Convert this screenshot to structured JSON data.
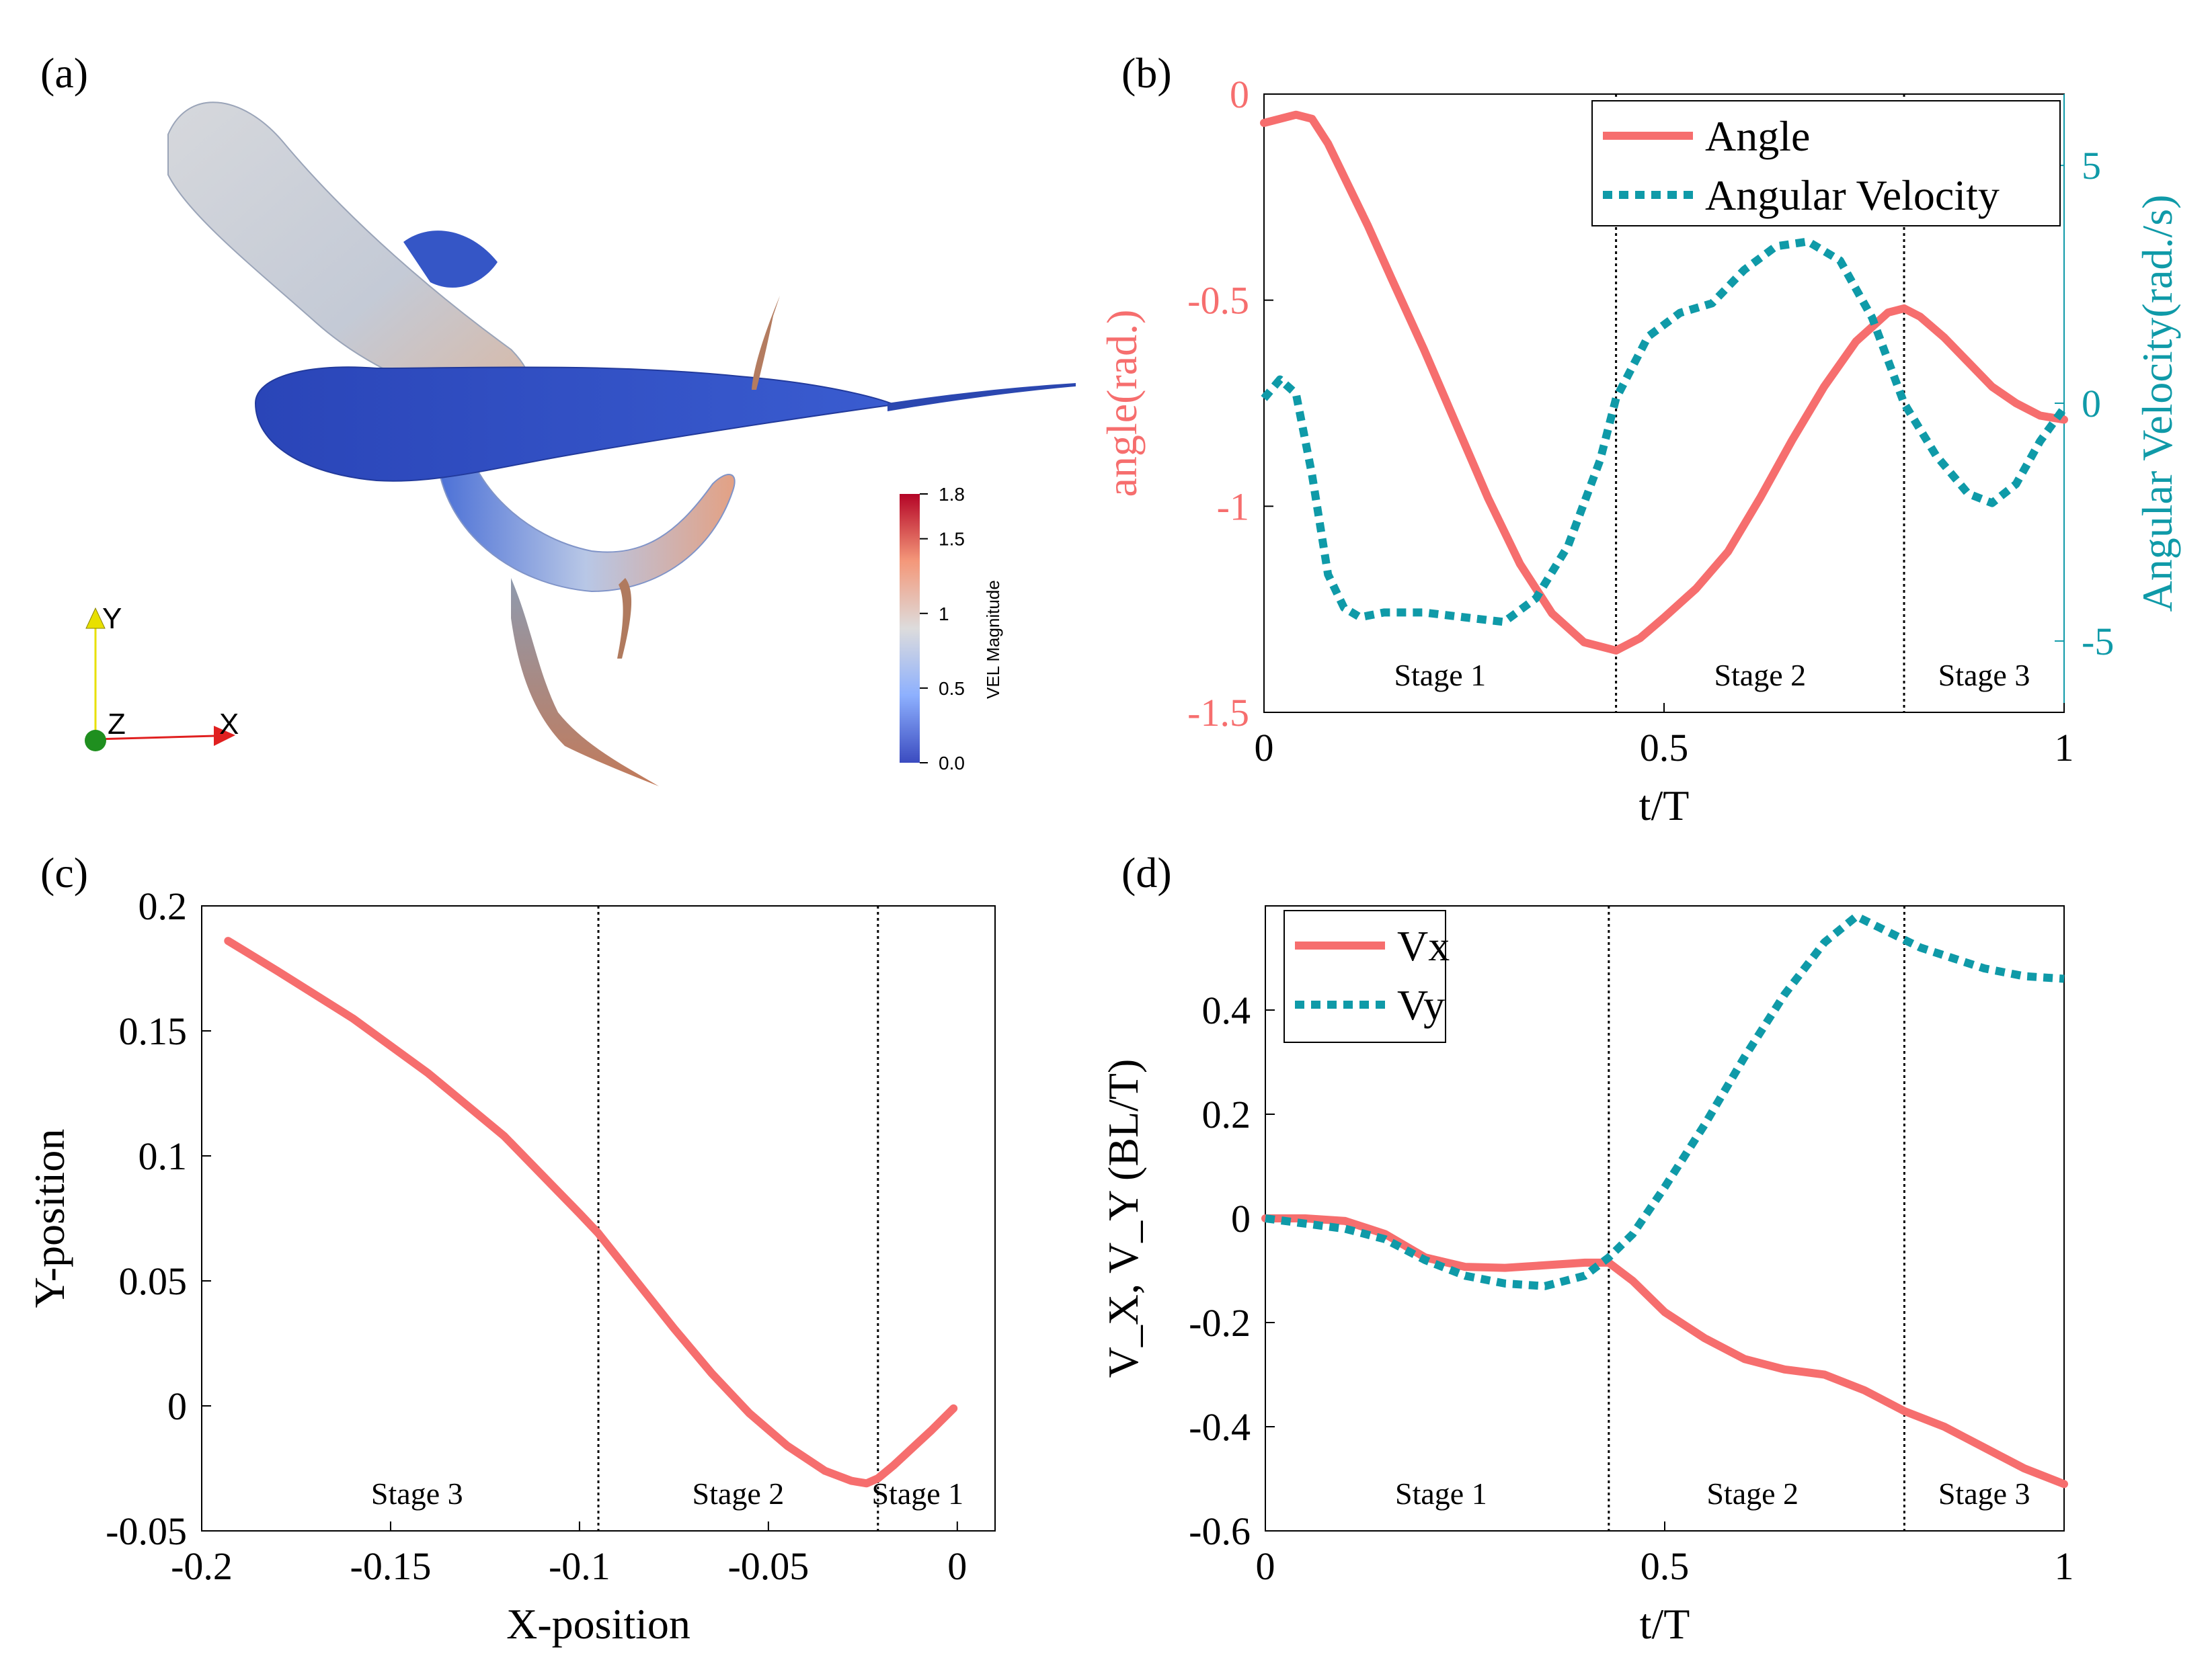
{
  "panels": {
    "a": {
      "label": "(a)"
    },
    "b": {
      "label": "(b)"
    },
    "c": {
      "label": "(c)"
    },
    "d": {
      "label": "(d)"
    }
  },
  "colors": {
    "red": "#f66e6e",
    "teal": "#0f9aa8",
    "fish_blue": "#2f4fbf",
    "axis": "#000000"
  },
  "render3d": {
    "axes_triad": {
      "x": "X",
      "y": "Y",
      "z": "Z"
    },
    "colorbar": {
      "title": "VEL Magnitude",
      "ticks": [
        "1.8",
        "1.5",
        "1",
        "0.5",
        "0.0"
      ],
      "tick_values": [
        1.8,
        1.5,
        1.0,
        0.5,
        0.0
      ],
      "range": [
        0.0,
        1.8
      ]
    }
  },
  "chart_data": [
    {
      "id": "b",
      "type": "line",
      "title": "",
      "xlabel": "t/T",
      "ylabel": "angle(rad.)",
      "y2label": "Angular Velocity(rad./s)",
      "xlim": [
        0,
        1
      ],
      "ylim": [
        -1.5,
        0
      ],
      "y2lim": [
        -6.5,
        6.5
      ],
      "xticks": [
        0,
        0.5,
        1
      ],
      "xtick_labels": [
        "0",
        "0.5",
        "1"
      ],
      "yticks": [
        0,
        -0.5,
        -1,
        -1.5
      ],
      "ytick_labels": [
        "0",
        "-0.5",
        "-1",
        "-1.5"
      ],
      "y2ticks": [
        5,
        0,
        -5
      ],
      "y2tick_labels": [
        "5",
        "0",
        "-5"
      ],
      "legend_position": "top-right",
      "stage_lines": [
        0.44,
        0.8
      ],
      "stage_labels": [
        {
          "text": "Stage 1",
          "x": 0.22
        },
        {
          "text": "Stage 2",
          "x": 0.62
        },
        {
          "text": "Stage 3",
          "x": 0.9
        }
      ],
      "series": [
        {
          "name": "Angle",
          "axis": "left",
          "style": "solid",
          "color": "#f66e6e",
          "x": [
            0,
            0.02,
            0.04,
            0.06,
            0.08,
            0.1,
            0.13,
            0.16,
            0.2,
            0.24,
            0.28,
            0.32,
            0.36,
            0.4,
            0.44,
            0.47,
            0.5,
            0.54,
            0.58,
            0.62,
            0.66,
            0.7,
            0.74,
            0.78,
            0.8,
            0.82,
            0.85,
            0.88,
            0.91,
            0.94,
            0.97,
            1.0
          ],
          "values": [
            -0.07,
            -0.06,
            -0.05,
            -0.06,
            -0.12,
            -0.2,
            -0.32,
            -0.45,
            -0.62,
            -0.8,
            -0.98,
            -1.14,
            -1.26,
            -1.33,
            -1.35,
            -1.32,
            -1.27,
            -1.2,
            -1.11,
            -0.98,
            -0.84,
            -0.71,
            -0.6,
            -0.53,
            -0.52,
            -0.54,
            -0.59,
            -0.65,
            -0.71,
            -0.75,
            -0.78,
            -0.79
          ]
        },
        {
          "name": "Angular Velocity",
          "axis": "right",
          "style": "dashed",
          "color": "#0f9aa8",
          "x": [
            0,
            0.02,
            0.04,
            0.06,
            0.08,
            0.1,
            0.12,
            0.15,
            0.2,
            0.25,
            0.3,
            0.34,
            0.38,
            0.42,
            0.44,
            0.48,
            0.52,
            0.56,
            0.6,
            0.64,
            0.68,
            0.72,
            0.76,
            0.8,
            0.84,
            0.88,
            0.91,
            0.94,
            0.97,
            1.0
          ],
          "values": [
            0.1,
            0.5,
            0.2,
            -1.5,
            -3.6,
            -4.3,
            -4.5,
            -4.4,
            -4.4,
            -4.5,
            -4.6,
            -4.1,
            -3.0,
            -1.2,
            0.1,
            1.4,
            1.9,
            2.1,
            2.8,
            3.3,
            3.4,
            3.0,
            1.8,
            0.0,
            -1.1,
            -1.9,
            -2.1,
            -1.7,
            -0.8,
            -0.1
          ]
        }
      ]
    },
    {
      "id": "c",
      "type": "line",
      "title": "",
      "xlabel": "X-position",
      "ylabel": "Y-position",
      "xlim": [
        -0.2,
        0.01
      ],
      "ylim": [
        -0.05,
        0.2
      ],
      "xticks": [
        -0.2,
        -0.15,
        -0.1,
        -0.05,
        0
      ],
      "xtick_labels": [
        "-0.2",
        "-0.15",
        "-0.1",
        "-0.05",
        "0"
      ],
      "yticks": [
        0.2,
        0.15,
        0.1,
        0.05,
        0,
        -0.05
      ],
      "ytick_labels": [
        "0.2",
        "0.15",
        "0.1",
        "0.05",
        "0",
        "-0.05"
      ],
      "stage_lines": [
        -0.095,
        -0.021
      ],
      "stage_labels": [
        {
          "text": "Stage 3",
          "x": -0.143
        },
        {
          "text": "Stage 2",
          "x": -0.058
        },
        {
          "text": "Stage 1",
          "x": -0.0105
        }
      ],
      "series": [
        {
          "name": "Trajectory",
          "style": "solid",
          "color": "#f66e6e",
          "x": [
            -0.193,
            -0.18,
            -0.16,
            -0.14,
            -0.12,
            -0.1,
            -0.095,
            -0.085,
            -0.075,
            -0.065,
            -0.055,
            -0.045,
            -0.035,
            -0.028,
            -0.024,
            -0.021,
            -0.017,
            -0.012,
            -0.007,
            -0.003,
            -0.001
          ],
          "values": [
            0.186,
            0.174,
            0.155,
            0.133,
            0.108,
            0.077,
            0.069,
            0.05,
            0.031,
            0.013,
            -0.003,
            -0.016,
            -0.026,
            -0.03,
            -0.031,
            -0.029,
            -0.024,
            -0.017,
            -0.01,
            -0.004,
            -0.001
          ]
        }
      ]
    },
    {
      "id": "d",
      "type": "line",
      "title": "",
      "xlabel": "t/T",
      "ylabel": "V_X, V_Y (BL/T)",
      "xlim": [
        0,
        1
      ],
      "ylim": [
        -0.6,
        0.6
      ],
      "xticks": [
        0,
        0.5,
        1
      ],
      "xtick_labels": [
        "0",
        "0.5",
        "1"
      ],
      "yticks": [
        0.4,
        0.2,
        0,
        -0.2,
        -0.4,
        -0.6
      ],
      "ytick_labels": [
        "0.4",
        "0.2",
        "0",
        "-0.2",
        "-0.4",
        "-0.6"
      ],
      "legend_position": "top-left",
      "stage_lines": [
        0.43,
        0.8
      ],
      "stage_labels": [
        {
          "text": "Stage 1",
          "x": 0.22
        },
        {
          "text": "Stage 2",
          "x": 0.61
        },
        {
          "text": "Stage 3",
          "x": 0.9
        }
      ],
      "series": [
        {
          "name": "Vx",
          "style": "solid",
          "color": "#f66e6e",
          "x": [
            0,
            0.05,
            0.1,
            0.15,
            0.2,
            0.25,
            0.3,
            0.35,
            0.4,
            0.43,
            0.46,
            0.5,
            0.55,
            0.6,
            0.65,
            0.7,
            0.75,
            0.8,
            0.85,
            0.9,
            0.95,
            1.0
          ],
          "values": [
            0.0,
            0.0,
            -0.005,
            -0.03,
            -0.075,
            -0.093,
            -0.095,
            -0.09,
            -0.085,
            -0.085,
            -0.12,
            -0.18,
            -0.23,
            -0.27,
            -0.29,
            -0.3,
            -0.33,
            -0.37,
            -0.4,
            -0.44,
            -0.48,
            -0.51
          ]
        },
        {
          "name": "Vy",
          "style": "dashed",
          "color": "#0f9aa8",
          "x": [
            0,
            0.05,
            0.1,
            0.15,
            0.2,
            0.25,
            0.3,
            0.35,
            0.4,
            0.43,
            0.46,
            0.5,
            0.55,
            0.6,
            0.65,
            0.7,
            0.74,
            0.78,
            0.82,
            0.86,
            0.9,
            0.95,
            1.0
          ],
          "values": [
            0.0,
            -0.01,
            -0.02,
            -0.04,
            -0.08,
            -0.11,
            -0.125,
            -0.13,
            -0.11,
            -0.075,
            -0.03,
            0.06,
            0.18,
            0.31,
            0.43,
            0.53,
            0.58,
            0.55,
            0.52,
            0.5,
            0.48,
            0.465,
            0.46
          ]
        }
      ]
    }
  ]
}
